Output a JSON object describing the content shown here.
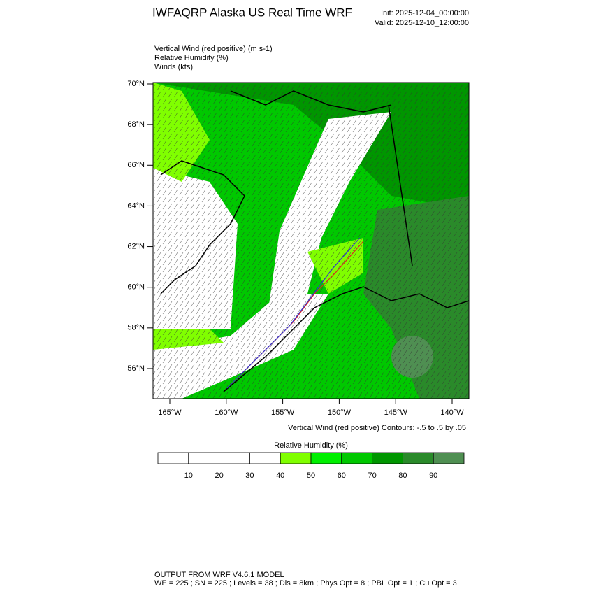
{
  "header": {
    "title": "IWFAQRP Alaska US Real Time WRF",
    "init": "Init: 2025-12-04_00:00:00",
    "valid": "Valid: 2025-12-10_12:00:00"
  },
  "fields": [
    "Vertical Wind (red positive)   (m s-1)",
    "Relative Humidity   (%)",
    "Winds   (kts)"
  ],
  "map": {
    "lat_ticks": [
      {
        "value": 70,
        "label": "70°N"
      },
      {
        "value": 68,
        "label": "68°N"
      },
      {
        "value": 66,
        "label": "66°N"
      },
      {
        "value": 64,
        "label": "64°N"
      },
      {
        "value": 62,
        "label": "62°N"
      },
      {
        "value": 60,
        "label": "60°N"
      },
      {
        "value": 58,
        "label": "58°N"
      },
      {
        "value": 56,
        "label": "56°N"
      }
    ],
    "lon_ticks": [
      {
        "value": -165,
        "label": "165°W"
      },
      {
        "value": -160,
        "label": "160°W"
      },
      {
        "value": -155,
        "label": "155°W"
      },
      {
        "value": -150,
        "label": "150°W"
      },
      {
        "value": -145,
        "label": "145°W"
      },
      {
        "value": -140,
        "label": "140°W"
      }
    ],
    "contour_note": "Vertical Wind (red positive) Contours: -.5 to .5 by .05"
  },
  "colorbar": {
    "title": "Relative Humidity  (%)",
    "levels": [
      10,
      20,
      30,
      40,
      50,
      60,
      70,
      80,
      90
    ],
    "colors": [
      "#ffffff",
      "#ffffff",
      "#ffffff",
      "#ffffff",
      "#80ff00",
      "#00f000",
      "#00c800",
      "#009600",
      "#2a8a2a",
      "#4f8f52"
    ]
  },
  "footer": [
    "OUTPUT FROM WRF V4.6.1 MODEL",
    "WE = 225 ; SN = 225 ; Levels = 38 ; Dis = 8km ; Phys Opt = 8 ; PBL Opt = 1 ; Cu Opt = 3"
  ]
}
